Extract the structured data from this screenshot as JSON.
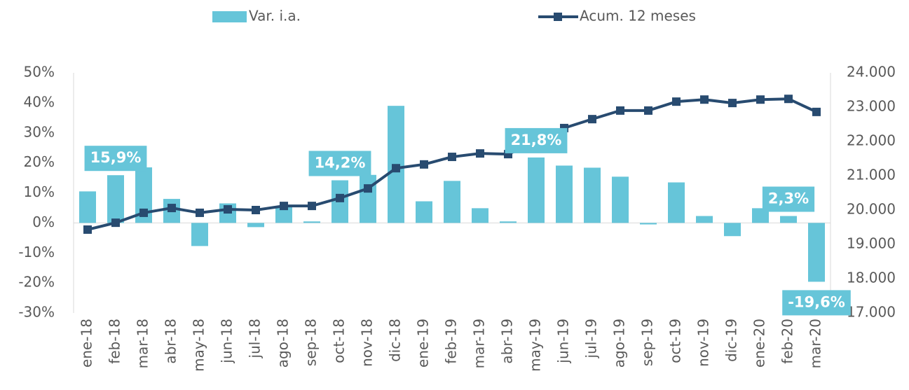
{
  "chart_data": {
    "type": "bar_line",
    "categories": [
      "ene-18",
      "feb-18",
      "mar-18",
      "abr-18",
      "may-18",
      "jun-18",
      "jul-18",
      "ago-18",
      "sep-18",
      "oct-18",
      "nov-18",
      "dic-18",
      "ene-19",
      "feb-19",
      "mar-19",
      "abr-19",
      "may-19",
      "jun-19",
      "jul-19",
      "ago-19",
      "sep-19",
      "oct-19",
      "nov-19",
      "dic-19",
      "ene-20",
      "feb-20",
      "mar-20"
    ],
    "series": [
      {
        "name": "Var. i.a.",
        "type": "bar",
        "color": "#66c5d9",
        "values": [
          10.5,
          15.9,
          18.5,
          8,
          -7.7,
          6.5,
          -1.4,
          5.5,
          0.5,
          14.2,
          16,
          39,
          7.2,
          14,
          4.9,
          0.5,
          21.8,
          19.1,
          18.4,
          15.4,
          -0.5,
          13.5,
          2.3,
          -4.4,
          4.9,
          2.3,
          -19.6
        ],
        "value_labels": [
          null,
          "15,9%",
          null,
          null,
          null,
          null,
          null,
          null,
          null,
          "14,2%",
          null,
          null,
          null,
          null,
          null,
          null,
          "21,8%",
          null,
          null,
          null,
          null,
          null,
          null,
          null,
          null,
          "2,3%",
          "-19,6%"
        ]
      },
      {
        "name": "Acum. 12 meses",
        "type": "line",
        "axis": "y2",
        "color": "#284b70",
        "values": [
          19430,
          19630,
          19920,
          20060,
          19920,
          20020,
          20000,
          20120,
          20120,
          20350,
          20630,
          21220,
          21330,
          21550,
          21650,
          21630,
          21980,
          22390,
          22650,
          22900,
          22900,
          23160,
          23220,
          23120,
          23220,
          23240,
          22860
        ]
      }
    ],
    "ylim": [
      -30,
      50
    ],
    "yticks": [
      {
        "value": -30,
        "label": "-30%"
      },
      {
        "value": -20,
        "label": "-20%"
      },
      {
        "value": -10,
        "label": "-10%"
      },
      {
        "value": 0,
        "label": "0%"
      },
      {
        "value": 10,
        "label": "10%"
      },
      {
        "value": 20,
        "label": "20%"
      },
      {
        "value": 30,
        "label": "30%"
      },
      {
        "value": 40,
        "label": "40%"
      },
      {
        "value": 50,
        "label": "50%"
      }
    ],
    "y2lim": [
      17000,
      24000
    ],
    "y2ticks": [
      {
        "value": 17000,
        "label": "17.000"
      },
      {
        "value": 18000,
        "label": "18.000"
      },
      {
        "value": 19000,
        "label": "19.000"
      },
      {
        "value": 20000,
        "label": "20.000"
      },
      {
        "value": 21000,
        "label": "21.000"
      },
      {
        "value": 22000,
        "label": "22.000"
      },
      {
        "value": 23000,
        "label": "23.000"
      },
      {
        "value": 24000,
        "label": "24.000"
      }
    ],
    "legend": "top"
  }
}
